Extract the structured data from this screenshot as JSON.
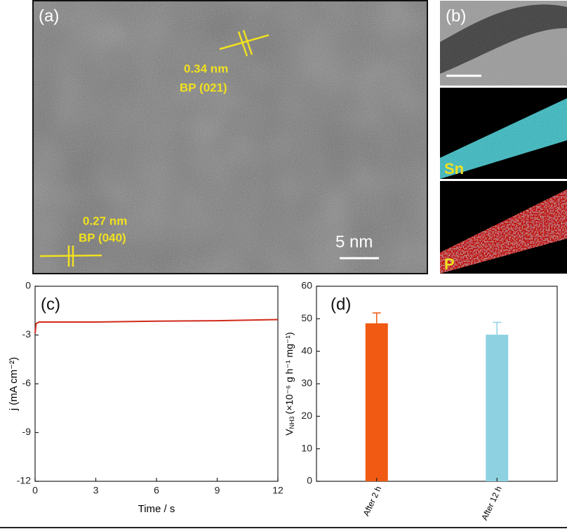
{
  "panels": {
    "a": {
      "label": "(a)",
      "d1": "0.34 nm",
      "p1": "BP (021)",
      "d2": "0.27 nm",
      "p2": "BP (040)",
      "scale": "5 nm"
    },
    "b": {
      "label": "(b)",
      "el1": "Sn",
      "el2": "P"
    }
  },
  "chart_data": [
    {
      "type": "line",
      "label": "(c)",
      "x_label": "Time / s",
      "y_label": "j (mA cm⁻²)",
      "x": [
        0,
        0.05,
        0.2,
        1,
        3,
        6,
        9,
        12
      ],
      "values": [
        -2.9,
        -2.3,
        -2.2,
        -2.2,
        -2.2,
        -2.15,
        -2.12,
        -2.05
      ],
      "color": "#d02a1a",
      "xlim": [
        0,
        12
      ],
      "xticks": [
        0,
        3,
        6,
        9,
        12
      ],
      "ylim": [
        -12,
        0
      ],
      "yticks": [
        0,
        -3,
        -6,
        -9,
        -12
      ]
    },
    {
      "type": "bar",
      "label": "(d)",
      "y_label": "V",
      "y_label_sub": "NH3",
      "y_label_unit": "(×10⁻⁶ g h⁻¹ mg⁻¹)",
      "categories": [
        "After 2 h",
        "After 12 h"
      ],
      "values": [
        48.6,
        45.1
      ],
      "errors": [
        3.2,
        3.8
      ],
      "colors": [
        "#f05a12",
        "#8ed2e2"
      ],
      "ylim": [
        0,
        60
      ],
      "yticks": [
        0,
        10,
        20,
        30,
        40,
        50,
        60
      ]
    }
  ]
}
